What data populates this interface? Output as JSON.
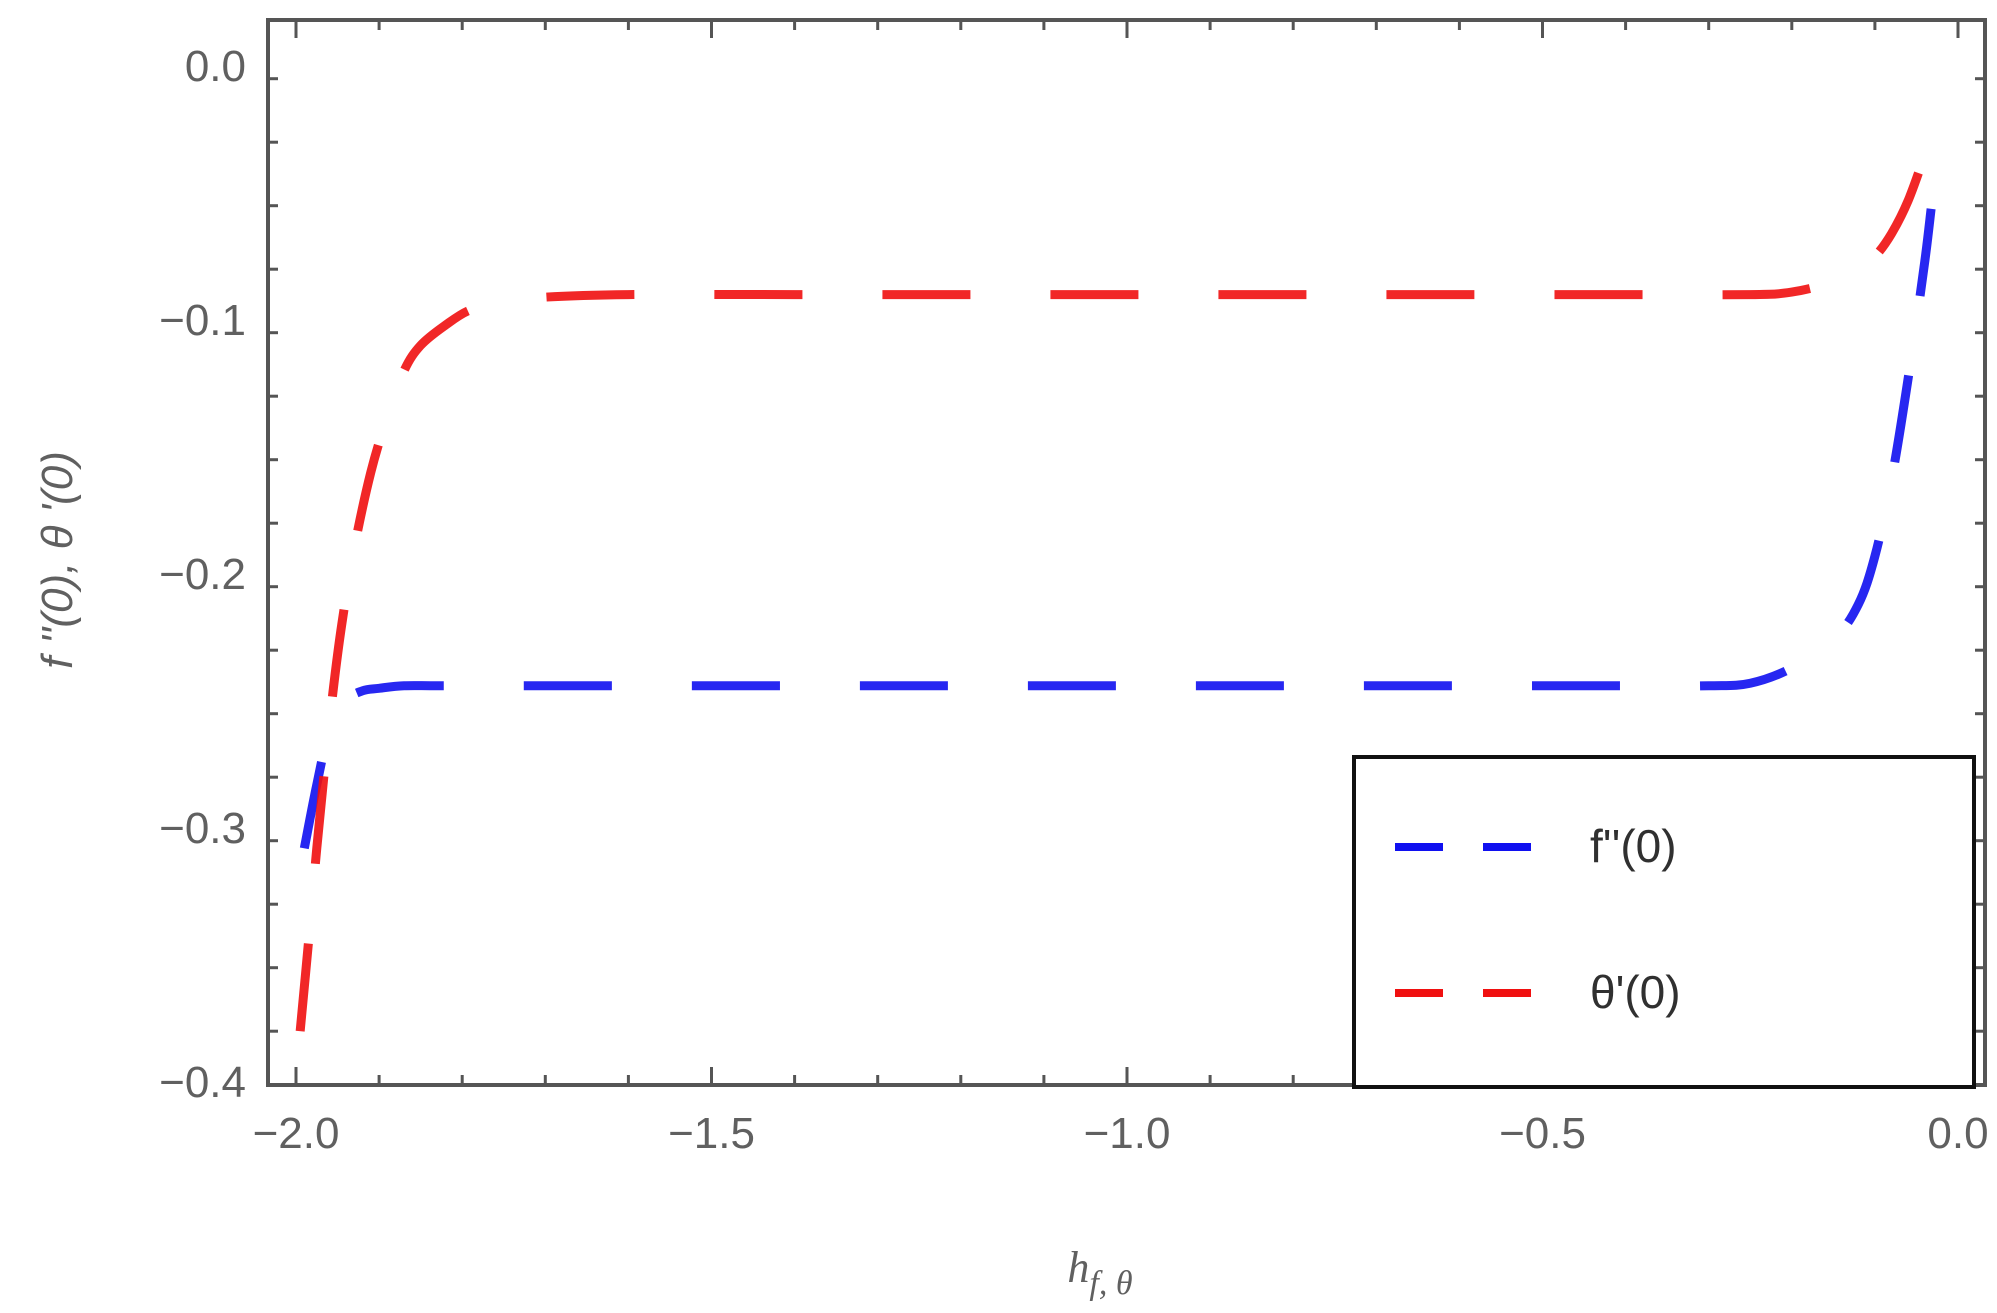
{
  "chart_data": {
    "type": "line",
    "xlabel": "h_{f, θ}",
    "xlabel_main": "h",
    "xlabel_sub": "f, θ",
    "ylabel": "f ''(0),  θ '(0)",
    "xlim": [
      -2.0,
      0.0
    ],
    "ylim": [
      -0.4,
      0.02
    ],
    "x_ticks": [
      -2.0,
      -1.5,
      -1.0,
      -0.5,
      0.0
    ],
    "x_tick_labels": [
      "−2.0",
      "−1.5",
      "−1.0",
      "−0.5",
      "0.0"
    ],
    "y_ticks": [
      0.0,
      -0.1,
      -0.2,
      -0.3,
      -0.4
    ],
    "y_tick_labels": [
      "0.0",
      "−0.1",
      "−0.2",
      "−0.3",
      "−0.4"
    ],
    "grid": false,
    "legend_position": "bottom-right",
    "series": [
      {
        "name": "f''(0)",
        "color": "#1010f0",
        "dash": "dashed",
        "x": [
          -1.99,
          -1.975,
          -1.96,
          -1.94,
          -1.92,
          -1.9,
          -1.87,
          -1.83,
          -1.75,
          -1.6,
          -1.4,
          -1.2,
          -1.0,
          -0.8,
          -0.6,
          -0.4,
          -0.3,
          -0.25,
          -0.2,
          -0.15,
          -0.12,
          -0.1,
          -0.08,
          -0.06,
          -0.04,
          -0.03,
          -0.02
        ],
        "y": [
          -0.308,
          -0.283,
          -0.262,
          -0.25,
          -0.246,
          -0.245,
          -0.244,
          -0.244,
          -0.244,
          -0.244,
          -0.244,
          -0.244,
          -0.244,
          -0.244,
          -0.244,
          -0.244,
          -0.244,
          -0.243,
          -0.237,
          -0.226,
          -0.212,
          -0.193,
          -0.163,
          -0.123,
          -0.077,
          -0.05,
          -0.028
        ]
      },
      {
        "name": "θ'(0)",
        "color": "#f01010",
        "dash": "dashed",
        "x": [
          -1.995,
          -1.985,
          -1.975,
          -1.965,
          -1.955,
          -1.945,
          -1.93,
          -1.91,
          -1.89,
          -1.87,
          -1.85,
          -1.82,
          -1.79,
          -1.75,
          -1.7,
          -1.6,
          -1.4,
          -1.2,
          -1.0,
          -0.8,
          -0.6,
          -0.4,
          -0.25,
          -0.2,
          -0.15,
          -0.12,
          -0.1,
          -0.08,
          -0.06,
          -0.04,
          -0.03,
          -0.02
        ],
        "y": [
          -0.38,
          -0.345,
          -0.308,
          -0.275,
          -0.245,
          -0.22,
          -0.19,
          -0.16,
          -0.138,
          -0.12,
          -0.11,
          -0.102,
          -0.096,
          -0.093,
          -0.091,
          -0.09,
          -0.09,
          -0.09,
          -0.09,
          -0.09,
          -0.09,
          -0.09,
          -0.09,
          -0.089,
          -0.085,
          -0.08,
          -0.075,
          -0.066,
          -0.053,
          -0.035,
          -0.025,
          -0.015
        ]
      }
    ]
  }
}
